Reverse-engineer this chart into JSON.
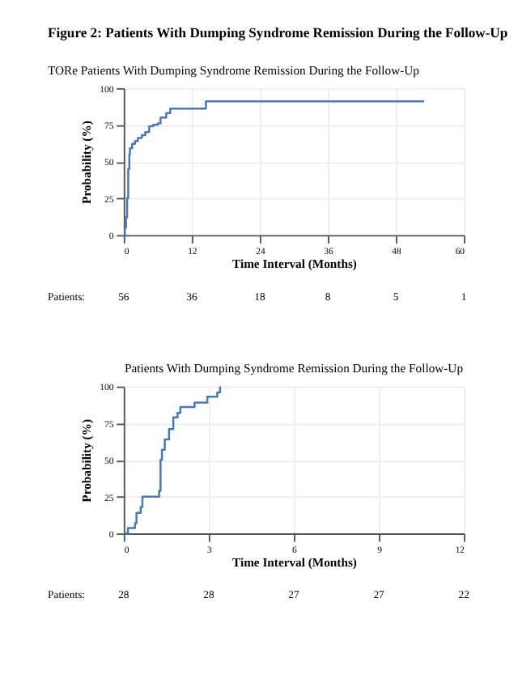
{
  "chart_data": [
    {
      "type": "step",
      "title": "Figure 2: Patients With Dumping Syndrome Remission During the Follow-Up",
      "subtitle": "TORe Patients With Dumping Syndrome Remission During the Follow-Up",
      "xlabel": "Time Interval (Months)",
      "ylabel": "Probability (%)",
      "color": "#4a78b5",
      "grid": true,
      "x": [
        0,
        0.2,
        0.4,
        0.6,
        0.8,
        1.0,
        1.1,
        1.5,
        2.0,
        2.5,
        3.2,
        3.8,
        4.5,
        5.2,
        6.0,
        6.5,
        7.5,
        8.2,
        14.5,
        53
      ],
      "values": [
        0,
        5,
        12,
        25,
        45,
        55,
        59,
        62,
        64,
        66,
        68,
        70,
        74,
        75,
        76,
        80,
        83,
        86,
        91,
        91
      ],
      "xlim": [
        0,
        60
      ],
      "xticks": [
        0,
        12,
        24,
        36,
        48,
        60
      ],
      "ylim": [
        0,
        100
      ],
      "yticks": [
        0,
        25,
        50,
        75,
        100
      ],
      "annotations": [
        "Patients:",
        "56",
        "36",
        "18",
        "8",
        "5",
        "1"
      ]
    },
    {
      "type": "step",
      "title": "Patients With Dumping Syndrome Remission During the Follow-Up",
      "xlabel": "Time Interval (Months)",
      "ylabel": "Probability (%)",
      "color": "#4a78b5",
      "grid": true,
      "x": [
        0,
        0.15,
        0.4,
        0.45,
        0.6,
        0.66,
        1.25,
        1.3,
        1.35,
        1.45,
        1.6,
        1.75,
        1.9,
        2.0,
        2.5,
        2.95,
        3.3,
        3.4
      ],
      "values": [
        0,
        3.6,
        7,
        14,
        18,
        25,
        29,
        50,
        57,
        64,
        71,
        79,
        82,
        86,
        89,
        93,
        96,
        100
      ],
      "xlim": [
        0,
        12
      ],
      "xticks": [
        0,
        3,
        6,
        9,
        12
      ],
      "ylim": [
        0,
        100
      ],
      "yticks": [
        0,
        25,
        50,
        75,
        100
      ],
      "annotations": [
        "Patients:",
        "28",
        "28",
        "27",
        "27",
        "22"
      ]
    }
  ]
}
